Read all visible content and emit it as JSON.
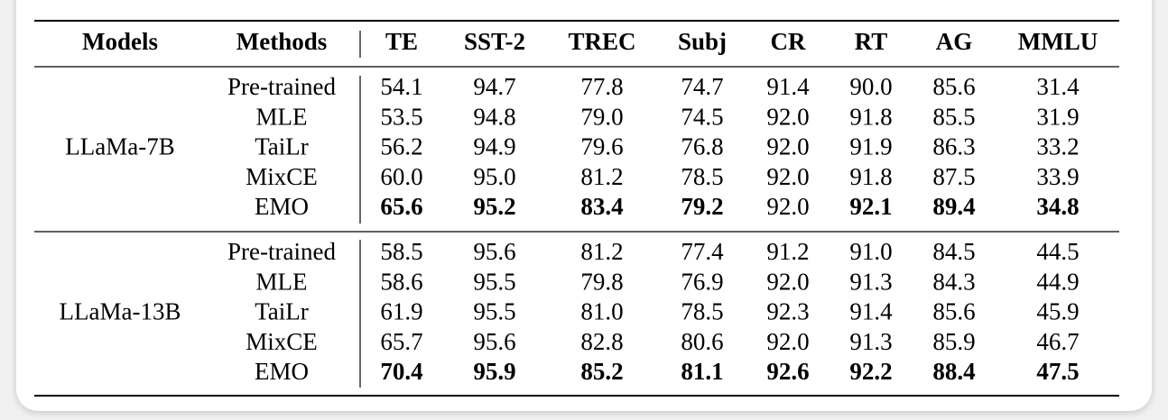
{
  "table": {
    "headers": [
      "Models",
      "Methods",
      "TE",
      "SST-2",
      "TREC",
      "Subj",
      "CR",
      "RT",
      "AG",
      "MMLU"
    ],
    "groups": [
      {
        "model": "LLaMa-7B",
        "rows": [
          {
            "method": "Pre-trained",
            "values": [
              "54.1",
              "94.7",
              "77.8",
              "74.7",
              "91.4",
              "90.0",
              "85.6",
              "31.4"
            ],
            "bold": [
              false,
              false,
              false,
              false,
              false,
              false,
              false,
              false
            ]
          },
          {
            "method": "MLE",
            "values": [
              "53.5",
              "94.8",
              "79.0",
              "74.5",
              "92.0",
              "91.8",
              "85.5",
              "31.9"
            ],
            "bold": [
              false,
              false,
              false,
              false,
              false,
              false,
              false,
              false
            ]
          },
          {
            "method": "TaiLr",
            "values": [
              "56.2",
              "94.9",
              "79.6",
              "76.8",
              "92.0",
              "91.9",
              "86.3",
              "33.2"
            ],
            "bold": [
              false,
              false,
              false,
              false,
              false,
              false,
              false,
              false
            ]
          },
          {
            "method": "MixCE",
            "values": [
              "60.0",
              "95.0",
              "81.2",
              "78.5",
              "92.0",
              "91.8",
              "87.5",
              "33.9"
            ],
            "bold": [
              false,
              false,
              false,
              false,
              false,
              false,
              false,
              false
            ]
          },
          {
            "method": "EMO",
            "values": [
              "65.6",
              "95.2",
              "83.4",
              "79.2",
              "92.0",
              "92.1",
              "89.4",
              "34.8"
            ],
            "bold": [
              true,
              true,
              true,
              true,
              false,
              true,
              true,
              true
            ]
          }
        ]
      },
      {
        "model": "LLaMa-13B",
        "rows": [
          {
            "method": "Pre-trained",
            "values": [
              "58.5",
              "95.6",
              "81.2",
              "77.4",
              "91.2",
              "91.0",
              "84.5",
              "44.5"
            ],
            "bold": [
              false,
              false,
              false,
              false,
              false,
              false,
              false,
              false
            ]
          },
          {
            "method": "MLE",
            "values": [
              "58.6",
              "95.5",
              "79.8",
              "76.9",
              "92.0",
              "91.3",
              "84.3",
              "44.9"
            ],
            "bold": [
              false,
              false,
              false,
              false,
              false,
              false,
              false,
              false
            ]
          },
          {
            "method": "TaiLr",
            "values": [
              "61.9",
              "95.5",
              "81.0",
              "78.5",
              "92.3",
              "91.4",
              "85.6",
              "45.9"
            ],
            "bold": [
              false,
              false,
              false,
              false,
              false,
              false,
              false,
              false
            ]
          },
          {
            "method": "MixCE",
            "values": [
              "65.7",
              "95.6",
              "82.8",
              "80.6",
              "92.0",
              "91.3",
              "85.9",
              "46.7"
            ],
            "bold": [
              false,
              false,
              false,
              false,
              false,
              false,
              false,
              false
            ]
          },
          {
            "method": "EMO",
            "values": [
              "70.4",
              "95.9",
              "85.2",
              "81.1",
              "92.6",
              "92.2",
              "88.4",
              "47.5"
            ],
            "bold": [
              true,
              true,
              true,
              true,
              true,
              true,
              true,
              true
            ]
          }
        ]
      }
    ]
  }
}
